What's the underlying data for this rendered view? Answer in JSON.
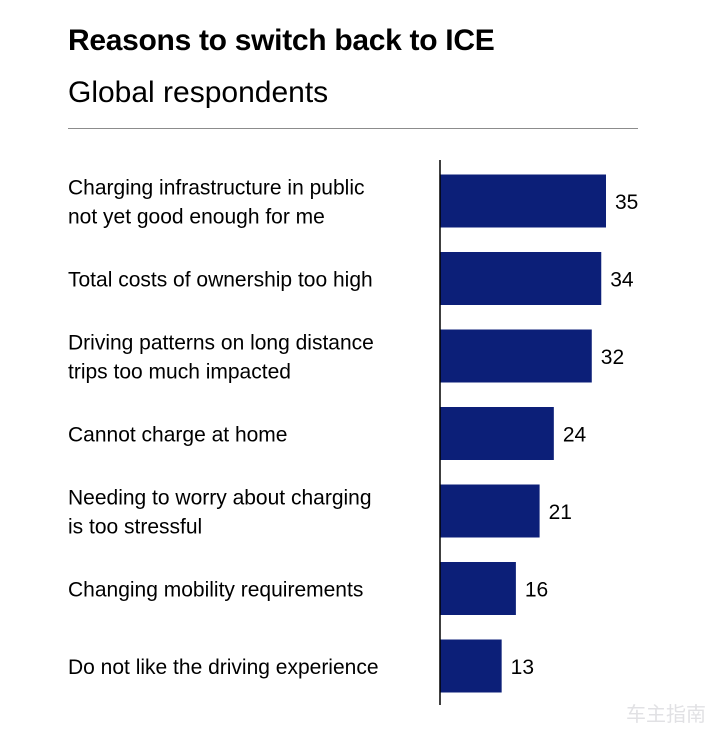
{
  "title": "Reasons to switch back to ICE",
  "subtitle": "Global respondents",
  "watermark": "车主指南",
  "colors": {
    "bar": "#0c1f78",
    "text": "#000000",
    "axis": "#000000",
    "rule": "#8c8c8c"
  },
  "chart_data": {
    "type": "bar",
    "orientation": "horizontal",
    "title": "Reasons to switch back to ICE",
    "subtitle": "Global respondents",
    "categories": [
      [
        "Charging infrastructure in public",
        "not yet good enough for me"
      ],
      [
        "Total costs of ownership too high"
      ],
      [
        "Driving patterns on long distance",
        "trips too much impacted"
      ],
      [
        "Cannot charge at home"
      ],
      [
        "Needing to worry about charging",
        "is too stressful"
      ],
      [
        "Changing mobility requirements"
      ],
      [
        "Do not like the driving experience"
      ]
    ],
    "values": [
      35,
      34,
      32,
      24,
      21,
      16,
      13
    ],
    "xlim": [
      0,
      35
    ],
    "grid": false,
    "legend": "none",
    "data_labels": true
  }
}
